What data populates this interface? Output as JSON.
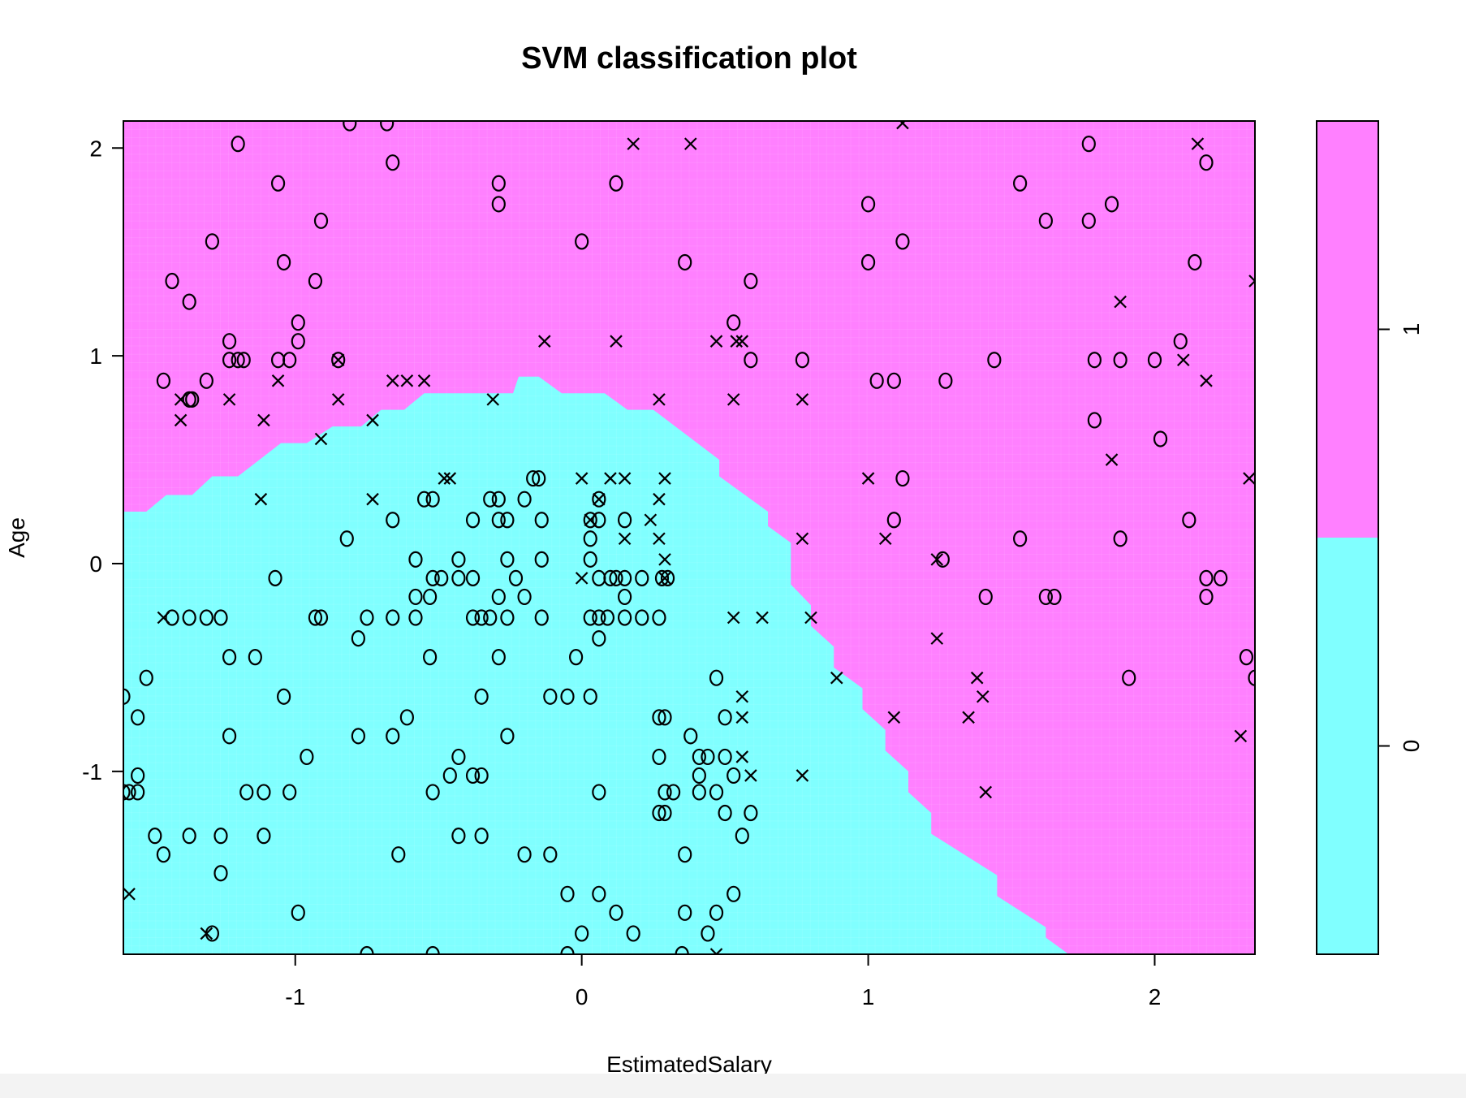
{
  "chart_data": {
    "type": "scatter",
    "title": "SVM classification plot",
    "xlabel": "EstimatedSalary",
    "ylabel": "Age",
    "xlim": [
      -1.6,
      2.35
    ],
    "ylim": [
      -1.88,
      2.13
    ],
    "x_ticks": [
      -1,
      0,
      1,
      2
    ],
    "y_ticks": [
      -1,
      0,
      1,
      2
    ],
    "x_tick_labels": [
      "-1",
      "0",
      "1",
      "2"
    ],
    "y_tick_labels": [
      "-1",
      "0",
      "1",
      "2"
    ],
    "classes": [
      "0",
      "1"
    ],
    "class_colors": {
      "0": "#80ffff",
      "1": "#ff80ff"
    },
    "legend": {
      "position": "right",
      "entries": [
        "0",
        "1"
      ],
      "split_value": 0.5
    },
    "boundary": [
      [
        -1.6,
        0.25
      ],
      [
        -1.52,
        0.25
      ],
      [
        -1.45,
        0.33
      ],
      [
        -1.36,
        0.33
      ],
      [
        -1.29,
        0.42
      ],
      [
        -1.2,
        0.42
      ],
      [
        -1.05,
        0.58
      ],
      [
        -0.96,
        0.58
      ],
      [
        -0.87,
        0.66
      ],
      [
        -0.77,
        0.66
      ],
      [
        -0.7,
        0.74
      ],
      [
        -0.62,
        0.74
      ],
      [
        -0.55,
        0.82
      ],
      [
        -0.24,
        0.82
      ],
      [
        -0.22,
        0.9
      ],
      [
        -0.15,
        0.9
      ],
      [
        -0.07,
        0.82
      ],
      [
        0.08,
        0.82
      ],
      [
        0.16,
        0.74
      ],
      [
        0.25,
        0.74
      ],
      [
        0.48,
        0.5
      ],
      [
        0.48,
        0.42
      ],
      [
        0.65,
        0.25
      ],
      [
        0.65,
        0.18
      ],
      [
        0.73,
        0.1
      ],
      [
        0.73,
        -0.1
      ],
      [
        0.8,
        -0.2
      ],
      [
        0.8,
        -0.3
      ],
      [
        0.88,
        -0.4
      ],
      [
        0.88,
        -0.5
      ],
      [
        0.98,
        -0.6
      ],
      [
        0.98,
        -0.7
      ],
      [
        1.06,
        -0.8
      ],
      [
        1.06,
        -0.9
      ],
      [
        1.14,
        -1.0
      ],
      [
        1.14,
        -1.1
      ],
      [
        1.22,
        -1.2
      ],
      [
        1.22,
        -1.3
      ],
      [
        1.45,
        -1.5
      ],
      [
        1.45,
        -1.6
      ],
      [
        1.62,
        -1.75
      ],
      [
        1.62,
        -1.8
      ],
      [
        1.7,
        -1.88
      ],
      [
        2.35,
        -1.88
      ],
      [
        2.35,
        2.13
      ],
      [
        -1.6,
        2.13
      ]
    ],
    "points_x": [
      [
        -1.2,
        2.02
      ],
      [
        -1.06,
        1.83
      ],
      [
        -1.29,
        1.55
      ],
      [
        -1.04,
        1.45
      ],
      [
        -0.91,
        1.65
      ],
      [
        -0.93,
        1.36
      ],
      [
        -1.43,
        1.36
      ],
      [
        -1.37,
        1.26
      ],
      [
        -0.99,
        1.16
      ],
      [
        -1.23,
        1.07
      ],
      [
        -0.99,
        1.07
      ],
      [
        -1.18,
        0.98
      ],
      [
        -1.23,
        0.98
      ],
      [
        -1.06,
        0.98
      ],
      [
        -1.02,
        0.98
      ],
      [
        -1.46,
        0.88
      ],
      [
        -1.31,
        0.88
      ],
      [
        -1.37,
        0.79
      ],
      [
        -1.36,
        0.79
      ],
      [
        -0.68,
        2.12
      ],
      [
        -0.81,
        2.12
      ],
      [
        -0.66,
        1.93
      ],
      [
        -0.29,
        1.83
      ],
      [
        -0.29,
        1.73
      ],
      [
        0.12,
        1.83
      ],
      [
        0.0,
        1.55
      ],
      [
        0.36,
        1.45
      ],
      [
        0.59,
        1.36
      ],
      [
        0.53,
        1.16
      ],
      [
        1.0,
        1.73
      ],
      [
        1.0,
        1.45
      ],
      [
        1.12,
        1.55
      ],
      [
        1.53,
        1.83
      ],
      [
        1.62,
        1.65
      ],
      [
        1.77,
        2.02
      ],
      [
        1.77,
        1.65
      ],
      [
        1.85,
        1.73
      ],
      [
        2.18,
        1.93
      ],
      [
        2.14,
        1.45
      ],
      [
        0.59,
        0.98
      ],
      [
        0.77,
        0.98
      ],
      [
        1.03,
        0.88
      ],
      [
        1.09,
        0.88
      ],
      [
        1.27,
        0.88
      ],
      [
        1.44,
        0.98
      ],
      [
        1.79,
        0.98
      ],
      [
        1.88,
        0.98
      ],
      [
        2.0,
        0.98
      ],
      [
        2.09,
        1.07
      ],
      [
        1.79,
        0.69
      ],
      [
        2.02,
        0.6
      ],
      [
        1.12,
        0.41
      ],
      [
        1.09,
        0.21
      ],
      [
        1.53,
        0.12
      ],
      [
        1.88,
        0.12
      ],
      [
        1.26,
        0.02
      ],
      [
        1.41,
        -0.16
      ],
      [
        1.62,
        -0.16
      ],
      [
        1.65,
        -0.16
      ],
      [
        2.18,
        -0.07
      ],
      [
        2.23,
        -0.07
      ],
      [
        2.18,
        -0.16
      ],
      [
        2.12,
        0.21
      ],
      [
        2.32,
        -0.45
      ],
      [
        1.91,
        -0.55
      ],
      [
        2.35,
        -0.55
      ],
      [
        -1.2,
        0.98
      ],
      [
        -0.85,
        0.98
      ]
    ],
    "points_cross": [
      [
        -1.4,
        0.79
      ],
      [
        -1.4,
        0.69
      ],
      [
        -1.23,
        0.79
      ],
      [
        -1.11,
        0.69
      ],
      [
        -1.06,
        0.88
      ],
      [
        -0.85,
        0.98
      ],
      [
        -0.85,
        0.79
      ],
      [
        -0.91,
        0.6
      ],
      [
        -0.73,
        0.69
      ],
      [
        -0.66,
        0.88
      ],
      [
        -0.61,
        0.88
      ],
      [
        -0.55,
        0.88
      ],
      [
        -0.31,
        0.79
      ],
      [
        -0.13,
        1.07
      ],
      [
        0.12,
        1.07
      ],
      [
        0.18,
        2.02
      ],
      [
        0.38,
        2.02
      ],
      [
        0.47,
        1.07
      ],
      [
        0.54,
        1.07
      ],
      [
        0.56,
        1.07
      ],
      [
        0.27,
        0.79
      ],
      [
        0.53,
        0.79
      ],
      [
        0.77,
        0.79
      ],
      [
        1.12,
        2.12
      ],
      [
        1.88,
        1.26
      ],
      [
        2.15,
        2.02
      ],
      [
        2.1,
        0.98
      ],
      [
        2.18,
        0.88
      ],
      [
        2.35,
        1.36
      ],
      [
        1.85,
        0.5
      ],
      [
        2.33,
        0.41
      ],
      [
        1.0,
        0.41
      ],
      [
        1.06,
        0.12
      ],
      [
        0.77,
        0.12
      ],
      [
        1.24,
        0.02
      ],
      [
        0.8,
        -0.26
      ],
      [
        0.89,
        -0.55
      ],
      [
        1.24,
        -0.36
      ],
      [
        1.38,
        -0.55
      ],
      [
        1.4,
        -0.64
      ],
      [
        1.09,
        -0.74
      ],
      [
        1.35,
        -0.74
      ],
      [
        1.41,
        -1.1
      ],
      [
        0.77,
        -1.02
      ],
      [
        2.3,
        -0.83
      ],
      [
        0.63,
        -0.26
      ],
      [
        0.53,
        -0.26
      ],
      [
        -1.12,
        0.31
      ],
      [
        -0.73,
        0.31
      ],
      [
        -0.48,
        0.41
      ],
      [
        -0.46,
        0.41
      ],
      [
        0.0,
        0.41
      ],
      [
        0.1,
        0.41
      ],
      [
        0.15,
        0.41
      ],
      [
        0.29,
        0.41
      ],
      [
        0.06,
        0.31
      ],
      [
        0.27,
        0.31
      ],
      [
        0.03,
        0.21
      ],
      [
        0.24,
        0.21
      ],
      [
        0.15,
        0.12
      ],
      [
        0.27,
        0.12
      ],
      [
        0.29,
        0.02
      ],
      [
        0.0,
        -0.07
      ],
      [
        0.29,
        -0.07
      ],
      [
        -1.46,
        -0.26
      ],
      [
        0.56,
        -0.64
      ],
      [
        0.56,
        -0.74
      ],
      [
        0.56,
        -0.93
      ],
      [
        0.59,
        -1.02
      ],
      [
        -1.58,
        -1.59
      ],
      [
        -1.31,
        -1.78
      ],
      [
        0.47,
        -1.88
      ]
    ],
    "points_o_cyan": [
      [
        -1.43,
        -0.26
      ],
      [
        -1.37,
        -0.26
      ],
      [
        -1.31,
        -0.26
      ],
      [
        -1.26,
        -0.26
      ],
      [
        -1.23,
        -0.45
      ],
      [
        -1.14,
        -0.45
      ],
      [
        -1.52,
        -0.55
      ],
      [
        -1.6,
        -0.64
      ],
      [
        -1.55,
        -0.74
      ],
      [
        -1.23,
        -0.83
      ],
      [
        -1.04,
        -0.64
      ],
      [
        -1.55,
        -1.02
      ],
      [
        -1.58,
        -1.1
      ],
      [
        -1.6,
        -1.1
      ],
      [
        -1.55,
        -1.1
      ],
      [
        -1.17,
        -1.1
      ],
      [
        -1.11,
        -1.1
      ],
      [
        -1.02,
        -1.1
      ],
      [
        -1.49,
        -1.31
      ],
      [
        -1.46,
        -1.4
      ],
      [
        -1.37,
        -1.31
      ],
      [
        -1.26,
        -1.31
      ],
      [
        -1.11,
        -1.31
      ],
      [
        -1.26,
        -1.49
      ],
      [
        -0.99,
        -1.68
      ],
      [
        -1.29,
        -1.78
      ],
      [
        -0.96,
        -0.93
      ],
      [
        -0.93,
        -0.26
      ],
      [
        -0.91,
        -0.26
      ],
      [
        -0.78,
        -0.36
      ],
      [
        -0.75,
        -0.26
      ],
      [
        -0.66,
        -0.26
      ],
      [
        -0.58,
        -0.26
      ],
      [
        -0.53,
        -0.45
      ],
      [
        -0.61,
        -0.74
      ],
      [
        -0.78,
        -0.83
      ],
      [
        -0.66,
        -0.83
      ],
      [
        -0.64,
        -1.4
      ],
      [
        -0.82,
        0.12
      ],
      [
        -1.07,
        -0.07
      ],
      [
        -0.66,
        0.21
      ],
      [
        -0.55,
        0.31
      ],
      [
        -0.52,
        0.31
      ],
      [
        -0.58,
        0.02
      ],
      [
        -0.52,
        -0.07
      ],
      [
        -0.49,
        -0.07
      ],
      [
        -0.43,
        0.02
      ],
      [
        -0.43,
        -0.07
      ],
      [
        -0.38,
        -0.07
      ],
      [
        -0.58,
        -0.16
      ],
      [
        -0.53,
        -0.16
      ],
      [
        -0.38,
        -0.26
      ],
      [
        -0.35,
        -0.26
      ],
      [
        -0.32,
        -0.26
      ],
      [
        -0.26,
        -0.26
      ],
      [
        -0.29,
        -0.45
      ],
      [
        -0.35,
        -0.64
      ],
      [
        -0.43,
        -0.93
      ],
      [
        -0.46,
        -1.02
      ],
      [
        -0.38,
        -1.02
      ],
      [
        -0.35,
        -1.02
      ],
      [
        -0.52,
        -1.1
      ],
      [
        -0.43,
        -1.31
      ],
      [
        -0.35,
        -1.31
      ],
      [
        -0.26,
        -0.83
      ],
      [
        -0.2,
        -1.4
      ],
      [
        -0.11,
        -1.4
      ],
      [
        -0.32,
        0.31
      ],
      [
        -0.29,
        0.31
      ],
      [
        -0.29,
        0.21
      ],
      [
        -0.26,
        0.21
      ],
      [
        -0.2,
        0.31
      ],
      [
        -0.17,
        0.41
      ],
      [
        -0.15,
        0.41
      ],
      [
        -0.38,
        0.21
      ],
      [
        -0.26,
        0.02
      ],
      [
        -0.23,
        -0.07
      ],
      [
        -0.29,
        -0.16
      ],
      [
        -0.2,
        -0.16
      ],
      [
        -0.14,
        0.02
      ],
      [
        -0.14,
        0.21
      ],
      [
        -0.14,
        -0.26
      ],
      [
        -0.11,
        -0.64
      ],
      [
        -0.05,
        -0.64
      ],
      [
        0.03,
        -0.64
      ],
      [
        -0.02,
        -0.45
      ],
      [
        0.03,
        0.21
      ],
      [
        0.06,
        0.21
      ],
      [
        0.06,
        0.31
      ],
      [
        0.03,
        0.12
      ],
      [
        0.03,
        0.02
      ],
      [
        0.06,
        -0.07
      ],
      [
        0.1,
        -0.07
      ],
      [
        0.12,
        -0.07
      ],
      [
        0.15,
        -0.07
      ],
      [
        0.21,
        -0.07
      ],
      [
        0.28,
        -0.07
      ],
      [
        0.3,
        -0.07
      ],
      [
        0.15,
        0.21
      ],
      [
        0.03,
        -0.26
      ],
      [
        0.06,
        -0.26
      ],
      [
        0.09,
        -0.26
      ],
      [
        0.15,
        -0.26
      ],
      [
        0.21,
        -0.26
      ],
      [
        0.27,
        -0.26
      ],
      [
        0.06,
        -0.36
      ],
      [
        0.15,
        -0.16
      ],
      [
        0.27,
        -0.74
      ],
      [
        0.29,
        -0.74
      ],
      [
        0.27,
        -0.93
      ],
      [
        0.06,
        -1.1
      ],
      [
        0.29,
        -1.1
      ],
      [
        0.32,
        -1.1
      ],
      [
        0.27,
        -1.2
      ],
      [
        0.29,
        -1.2
      ],
      [
        0.36,
        -1.4
      ],
      [
        -0.05,
        -1.59
      ],
      [
        0.06,
        -1.59
      ],
      [
        0.12,
        -1.68
      ],
      [
        0.36,
        -1.68
      ],
      [
        0.0,
        -1.78
      ],
      [
        0.18,
        -1.78
      ],
      [
        0.44,
        -1.78
      ],
      [
        0.47,
        -1.68
      ],
      [
        0.53,
        -1.59
      ],
      [
        0.38,
        -0.83
      ],
      [
        0.41,
        -0.93
      ],
      [
        0.44,
        -0.93
      ],
      [
        0.41,
        -1.02
      ],
      [
        0.47,
        -1.1
      ],
      [
        0.41,
        -1.1
      ],
      [
        0.47,
        -0.55
      ],
      [
        0.5,
        -0.74
      ],
      [
        0.5,
        -0.93
      ],
      [
        0.53,
        -1.02
      ],
      [
        0.5,
        -1.2
      ],
      [
        0.59,
        -1.2
      ],
      [
        0.56,
        -1.31
      ],
      [
        0.35,
        -1.88
      ],
      [
        -0.75,
        -1.88
      ],
      [
        -0.52,
        -1.88
      ],
      [
        -0.05,
        -1.88
      ]
    ]
  }
}
